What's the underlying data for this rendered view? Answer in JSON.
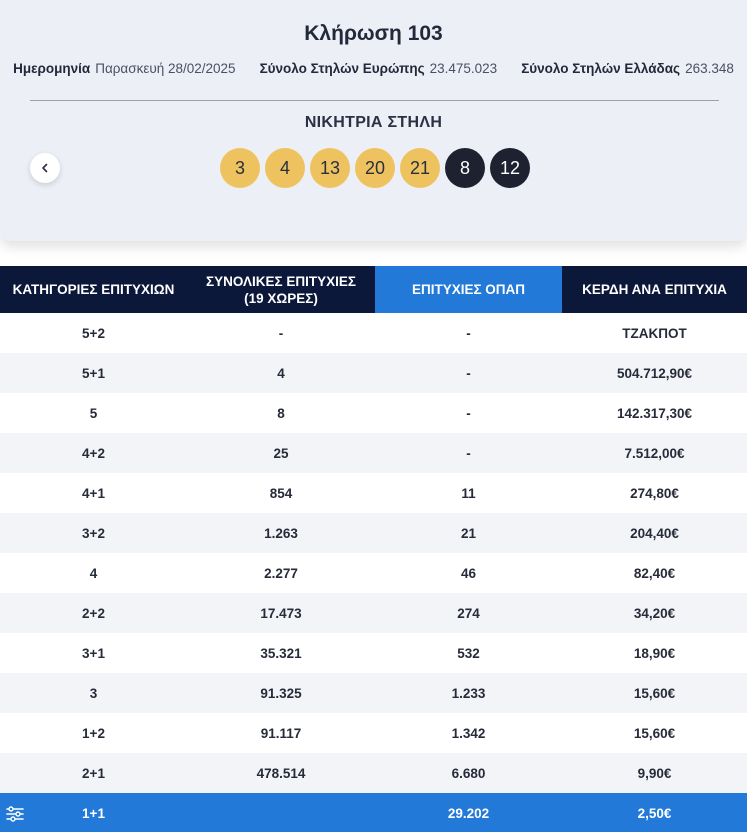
{
  "draw": {
    "title": "Κλήρωση 103",
    "date_label": "Ημερομηνία",
    "date_value": "Παρασκευή 28/02/2025",
    "europe_label": "Σύνολο Στηλών Ευρώπης",
    "europe_value": "23.475.023",
    "greece_label": "Σύνολο Στηλών Ελλάδας",
    "greece_value": "263.348",
    "winning_title": "ΝΙΚΗΤΡΙΑ ΣΤΗΛΗ",
    "numbers": [
      "3",
      "4",
      "13",
      "20",
      "21"
    ],
    "stars": [
      "8",
      "12"
    ],
    "prev_icon": "chevron-left-icon",
    "ball_color": "#eec35f",
    "star_color": "#1e2230"
  },
  "table": {
    "headers": {
      "category": "ΚΑΤΗΓΟΡΙΕΣ ΕΠΙΤΥΧΙΩΝ",
      "total_line1": "ΣΥΝΟΛΙΚΕΣ ΕΠΙΤΥΧΙΕΣ",
      "total_line2": "(19 ΧΩΡΕΣ)",
      "opap": "ΕΠΙΤΥΧΙΕΣ ΟΠΑΠ",
      "prize": "ΚΕΡΔΗ ΑΝΑ ΕΠΙΤΥΧΙΑ"
    },
    "rows": [
      {
        "category": "5+2",
        "total": "-",
        "opap": "-",
        "prize": "ΤΖΑΚΠΟΤ"
      },
      {
        "category": "5+1",
        "total": "4",
        "opap": "-",
        "prize": "504.712,90€"
      },
      {
        "category": "5",
        "total": "8",
        "opap": "-",
        "prize": "142.317,30€"
      },
      {
        "category": "4+2",
        "total": "25",
        "opap": "-",
        "prize": "7.512,00€"
      },
      {
        "category": "4+1",
        "total": "854",
        "opap": "11",
        "prize": "274,80€"
      },
      {
        "category": "3+2",
        "total": "1.263",
        "opap": "21",
        "prize": "204,40€"
      },
      {
        "category": "4",
        "total": "2.277",
        "opap": "46",
        "prize": "82,40€"
      },
      {
        "category": "2+2",
        "total": "17.473",
        "opap": "274",
        "prize": "34,20€"
      },
      {
        "category": "3+1",
        "total": "35.321",
        "opap": "532",
        "prize": "18,90€"
      },
      {
        "category": "3",
        "total": "91.325",
        "opap": "1.233",
        "prize": "15,60€"
      },
      {
        "category": "1+2",
        "total": "91.117",
        "opap": "1.342",
        "prize": "15,60€"
      },
      {
        "category": "2+1",
        "total": "478.514",
        "opap": "6.680",
        "prize": "9,90€"
      },
      {
        "category": "1+1",
        "total": "",
        "opap": "29.202",
        "prize": "2,50€"
      }
    ],
    "header_color": "#0c1839",
    "accent_color": "#2279d8",
    "filter_icon": "filter-list-icon"
  }
}
